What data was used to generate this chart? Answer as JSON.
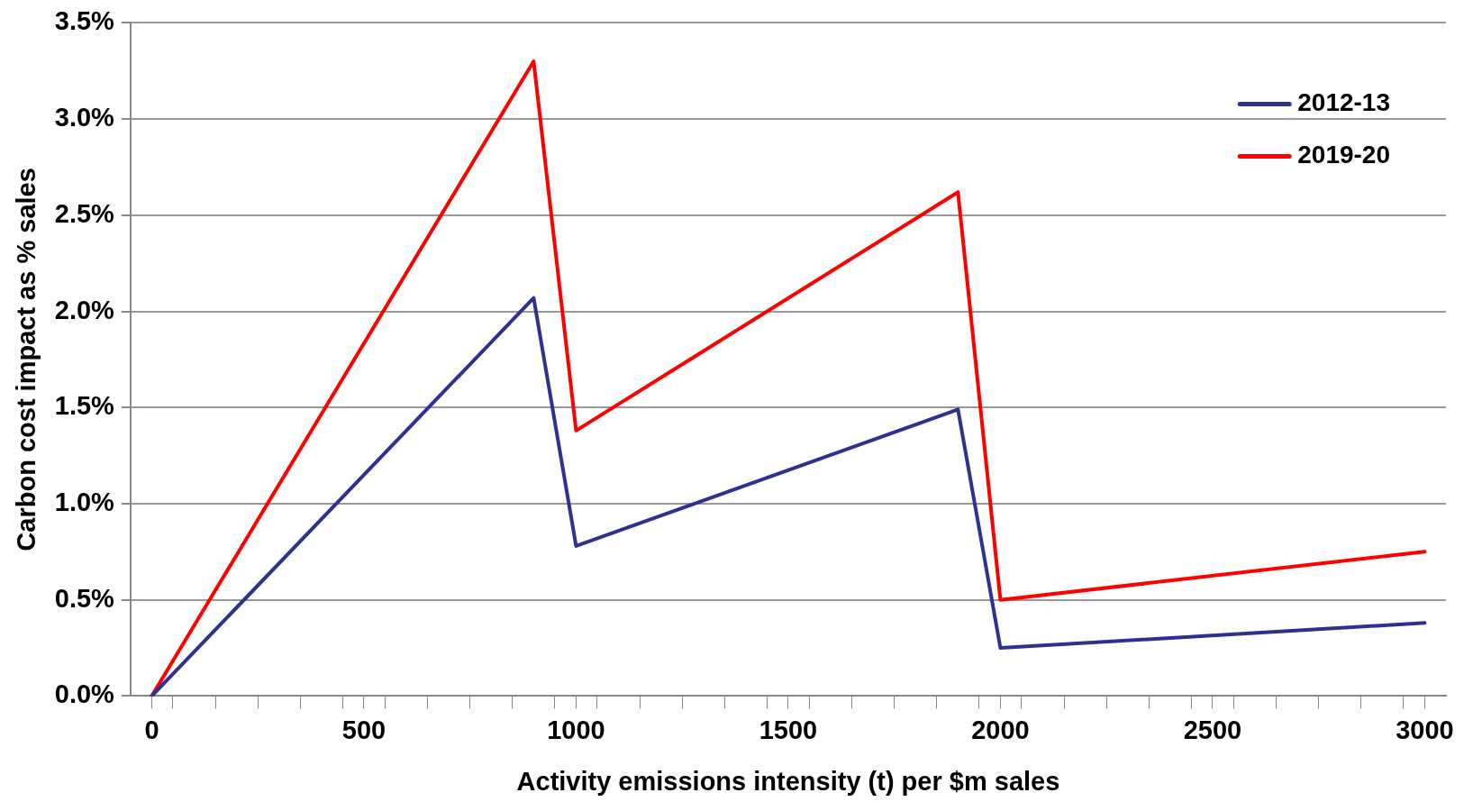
{
  "chart_data": {
    "type": "line",
    "xlabel": "Activity emissions intensity (t) per $m sales",
    "ylabel": "Carbon cost impact as % sales",
    "x": [
      0,
      900,
      1000,
      1900,
      2000,
      3000
    ],
    "series": [
      {
        "name": "2012-13",
        "color": "#2e3192",
        "values": [
          0,
          2.07,
          0.78,
          1.49,
          0.25,
          0.38
        ]
      },
      {
        "name": "2019-20",
        "color": "#ff0000",
        "values": [
          0,
          3.3,
          1.38,
          2.62,
          0.5,
          0.75
        ]
      }
    ],
    "xlim": [
      -50,
      3050
    ],
    "xticks": [
      0,
      {
        "value": 50,
        "label": null
      },
      {
        "value": 150,
        "label": null
      },
      {
        "value": 250,
        "label": null
      },
      {
        "value": 350,
        "label": null
      },
      {
        "value": 450,
        "label": null
      },
      500,
      {
        "value": 550,
        "label": null
      },
      {
        "value": 650,
        "label": null
      },
      {
        "value": 750,
        "label": null
      },
      {
        "value": 850,
        "label": null
      },
      {
        "value": 950,
        "label": null
      },
      1000,
      {
        "value": 1050,
        "label": null
      },
      {
        "value": 1150,
        "label": null
      },
      {
        "value": 1250,
        "label": null
      },
      {
        "value": 1350,
        "label": null
      },
      {
        "value": 1450,
        "label": null
      },
      1500,
      {
        "value": 1550,
        "label": null
      },
      {
        "value": 1650,
        "label": null
      },
      {
        "value": 1750,
        "label": null
      },
      {
        "value": 1850,
        "label": null
      },
      {
        "value": 1950,
        "label": null
      },
      2000,
      {
        "value": 2050,
        "label": null
      },
      {
        "value": 2150,
        "label": null
      },
      {
        "value": 2250,
        "label": null
      },
      {
        "value": 2350,
        "label": null
      },
      {
        "value": 2450,
        "label": null
      },
      2500,
      {
        "value": 2550,
        "label": null
      },
      {
        "value": 2650,
        "label": null
      },
      {
        "value": 2750,
        "label": null
      },
      {
        "value": 2850,
        "label": null
      },
      {
        "value": 2950,
        "label": null
      },
      3000
    ],
    "ylim": [
      0,
      3.5
    ],
    "yticks": [
      {
        "value": 0,
        "label": "0.0%"
      },
      {
        "value": 0.5,
        "label": "0.5%"
      },
      {
        "value": 1,
        "label": "1.0%"
      },
      {
        "value": 1.5,
        "label": "1.5%"
      },
      {
        "value": 2,
        "label": "2.0%"
      },
      {
        "value": 2.5,
        "label": "2.5%"
      },
      {
        "value": 3,
        "label": "3.0%"
      },
      {
        "value": 3.5,
        "label": "3.5%"
      }
    ],
    "grid": "y",
    "legend": "top right",
    "marker": "none",
    "line_style": "solid"
  }
}
